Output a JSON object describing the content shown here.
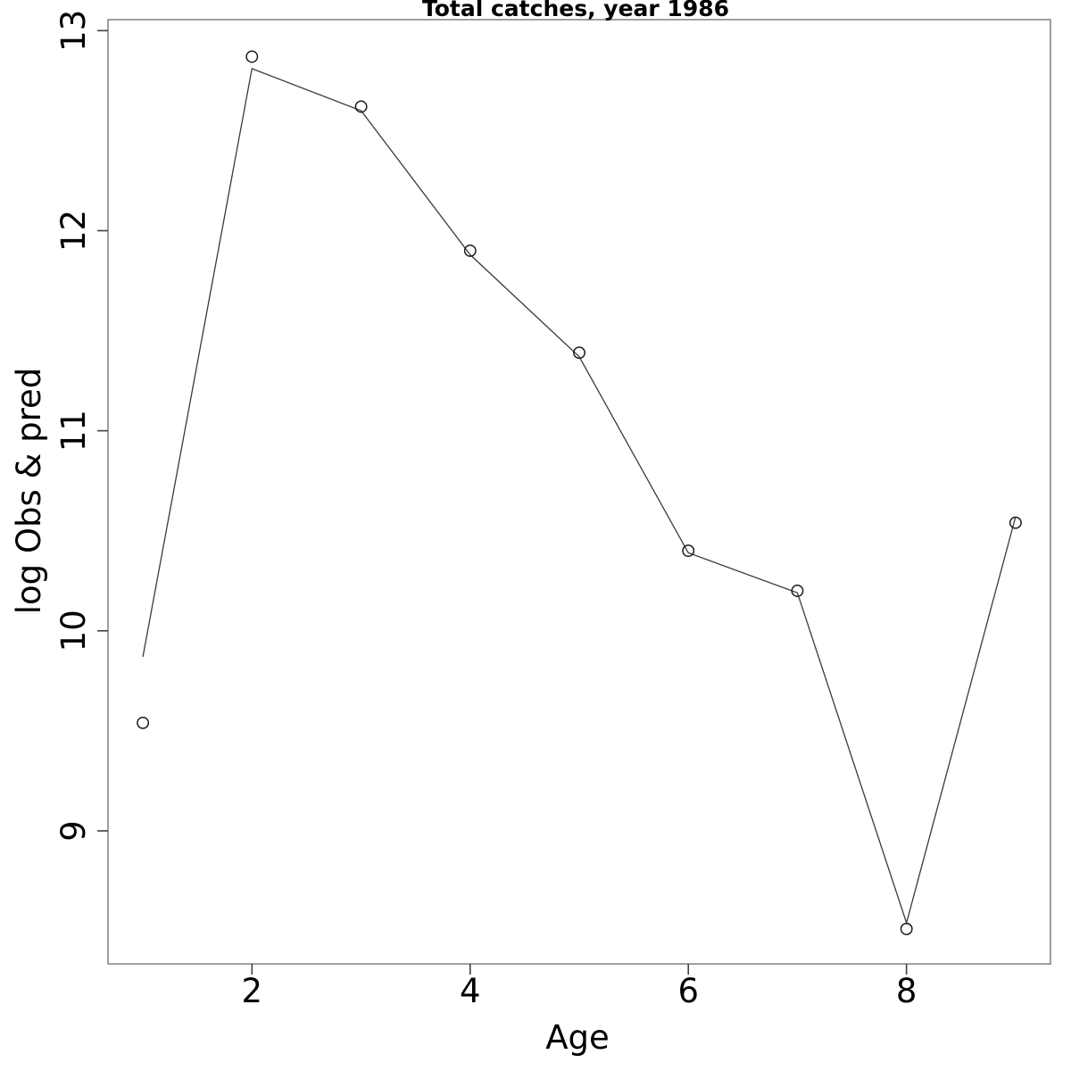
{
  "title": "Total catches, year 1986",
  "chart_data": {
    "type": "line",
    "title": "Total catches, year 1986",
    "xlabel": "Age",
    "ylabel": "log Obs & pred",
    "x": [
      1,
      2,
      3,
      4,
      5,
      6,
      7,
      8,
      9
    ],
    "series": [
      {
        "name": "observed",
        "style": "open-circle-markers",
        "values": [
          9.54,
          12.87,
          12.62,
          11.9,
          11.39,
          10.4,
          10.2,
          8.51,
          10.54
        ]
      },
      {
        "name": "predicted",
        "style": "thin-line",
        "values": [
          9.87,
          12.81,
          12.6,
          11.88,
          11.37,
          10.39,
          10.19,
          8.54,
          10.57
        ]
      }
    ],
    "x_ticks": [
      2,
      4,
      6,
      8
    ],
    "y_ticks": [
      9,
      10,
      11,
      12,
      13
    ],
    "xlim": [
      0.68,
      9.32
    ],
    "ylim": [
      8.335,
      13.055
    ],
    "grid": false,
    "legend": "none",
    "colors": {
      "box": "#787878",
      "tick": "#404040",
      "line": "#3a3a3a",
      "marker_stroke": "#1a1a1a",
      "text": "#000000",
      "background": "#ffffff"
    }
  }
}
